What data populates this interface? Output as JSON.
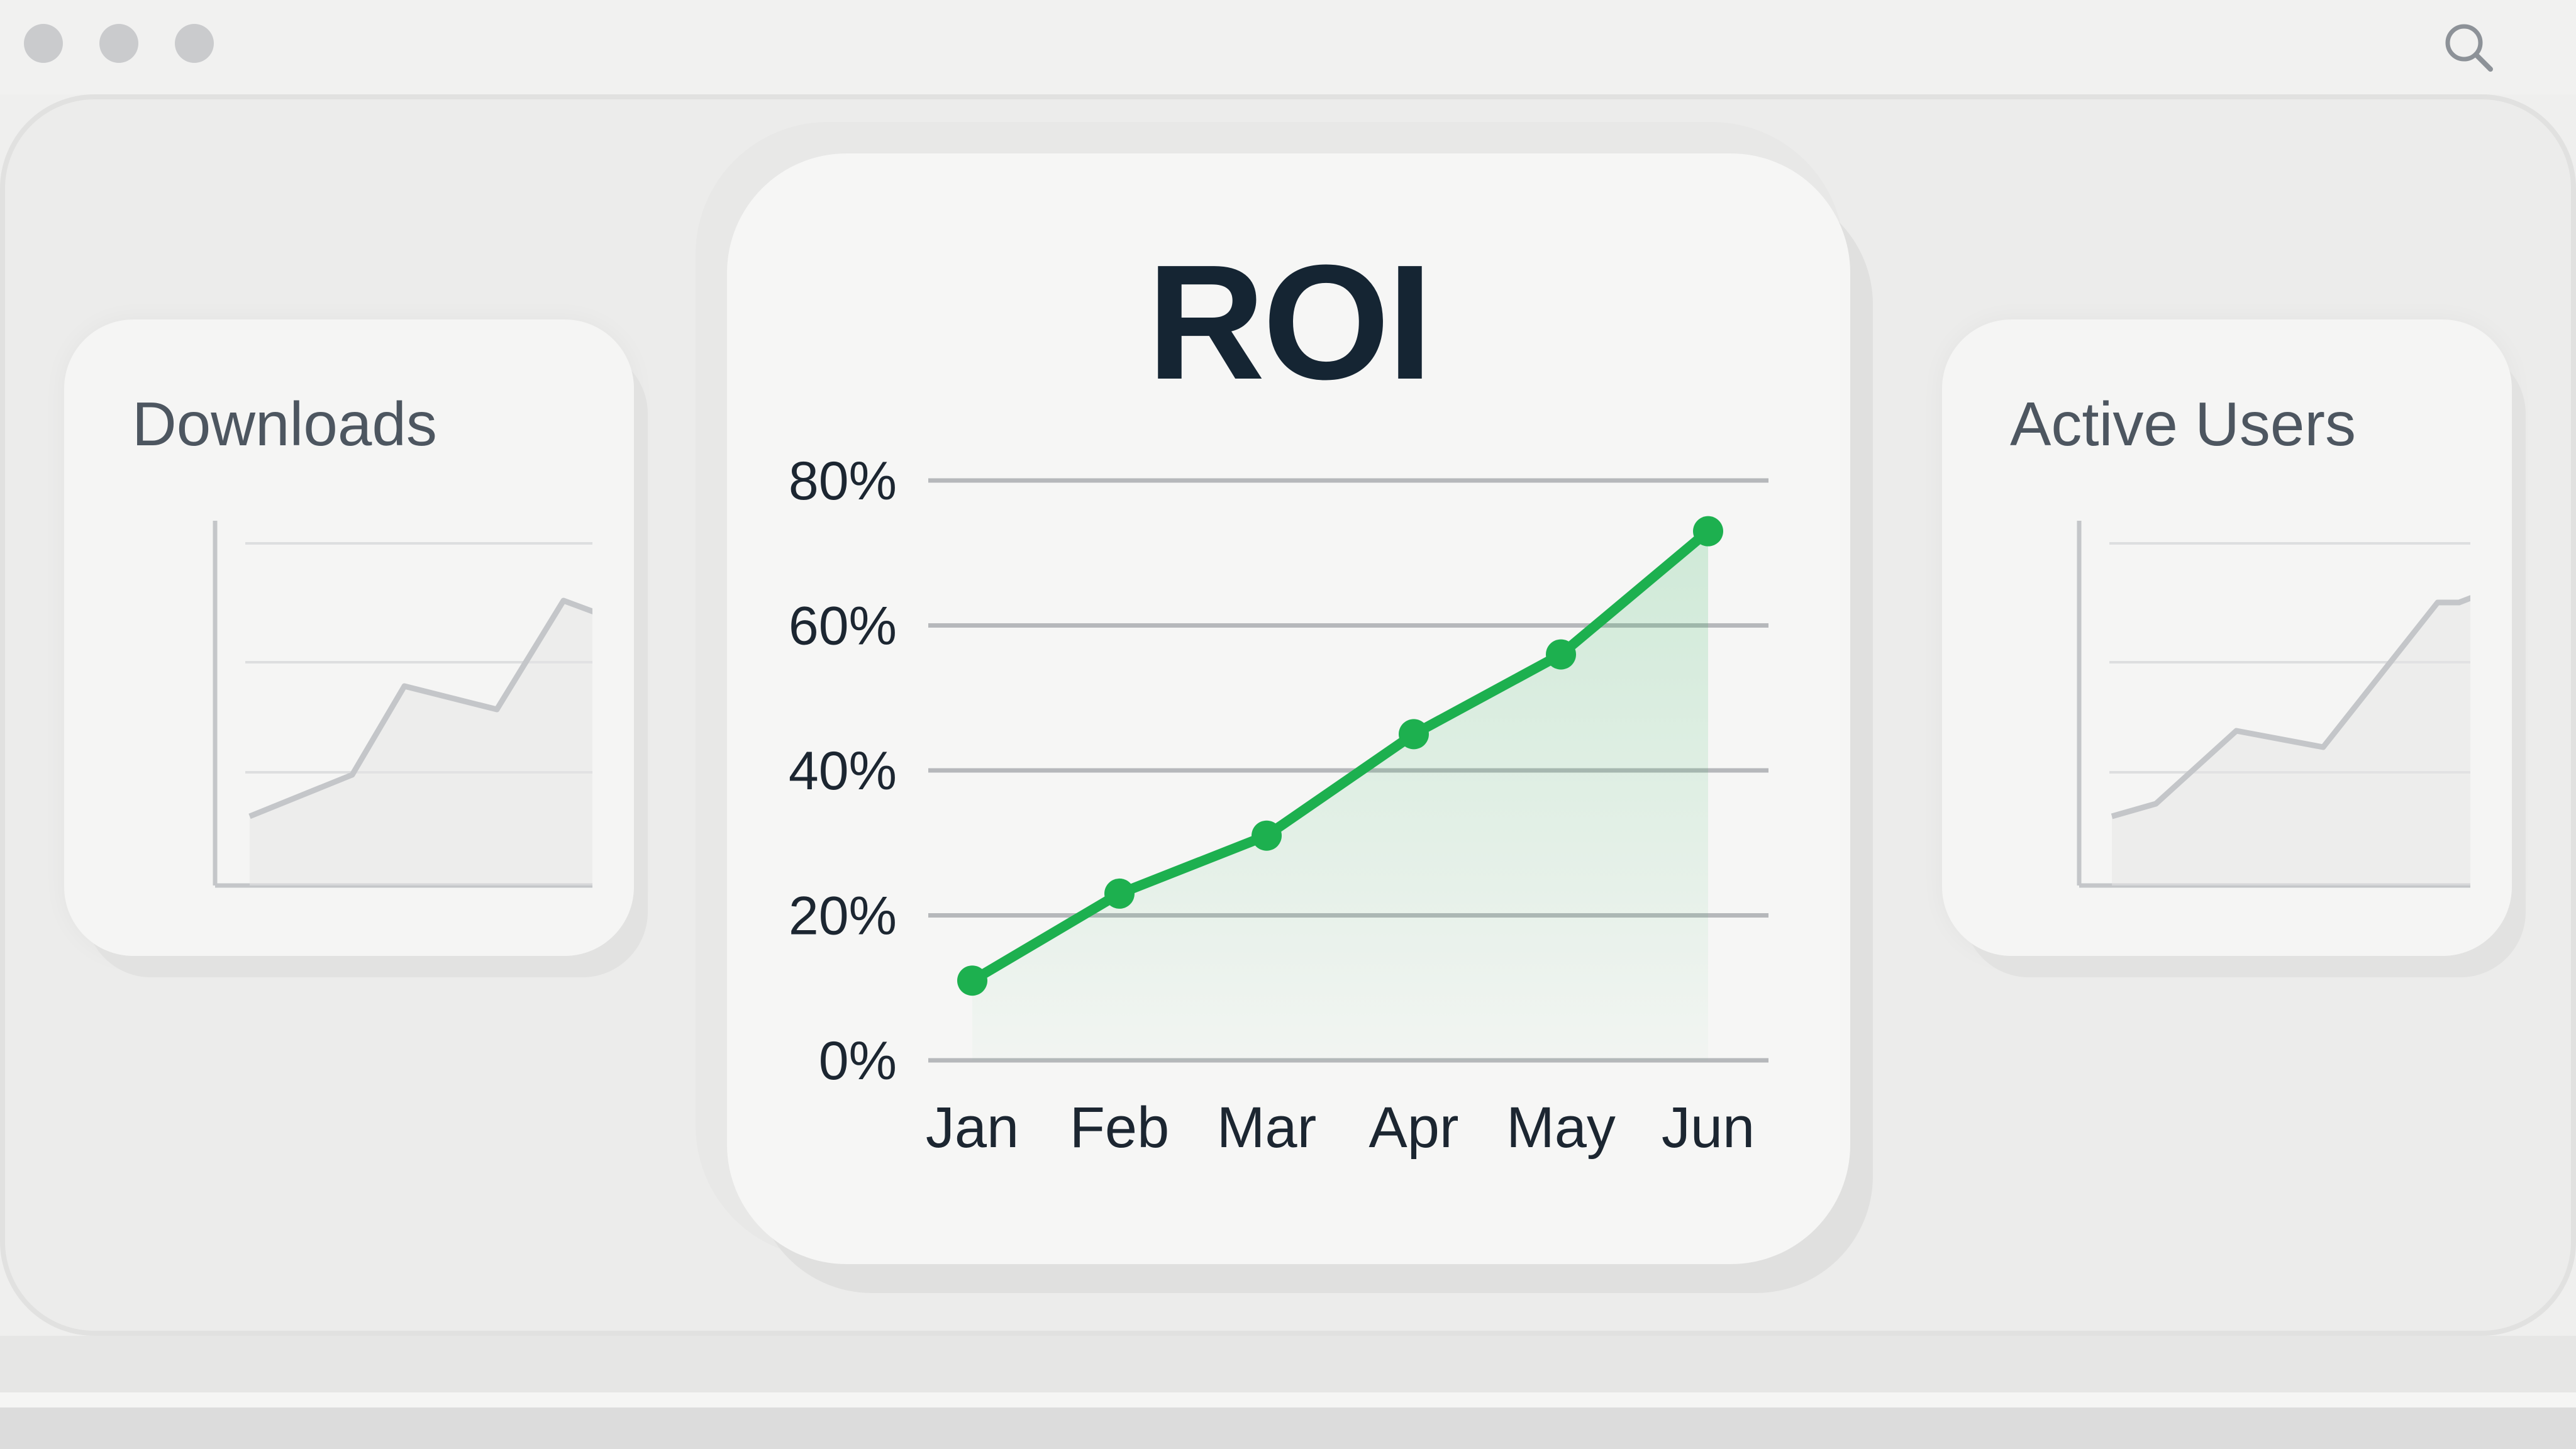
{
  "window": {
    "controls": [
      "window-dot",
      "window-dot",
      "window-dot"
    ],
    "search_icon": "search-icon"
  },
  "cards": {
    "left": {
      "title": "Downloads"
    },
    "right": {
      "title": "Active Users"
    },
    "main": {
      "title": "ROI"
    }
  },
  "chart_data": {
    "type": "area",
    "title": "ROI",
    "categories": [
      "Jan",
      "Feb",
      "Mar",
      "Apr",
      "May",
      "Jun"
    ],
    "values": [
      11,
      23,
      31,
      45,
      56,
      73
    ],
    "ylim": [
      0,
      80
    ],
    "yticks": [
      "0%",
      "20%",
      "40%",
      "60%",
      "80%"
    ],
    "ytick_values": [
      0,
      20,
      40,
      60,
      80
    ],
    "grid": true,
    "line_color": "#1db04f",
    "fill_color": "#1db04f"
  },
  "colors": {
    "accent": "#1db04f",
    "grid": "#b6b8bb",
    "mini_line": "#c4c6c9"
  }
}
